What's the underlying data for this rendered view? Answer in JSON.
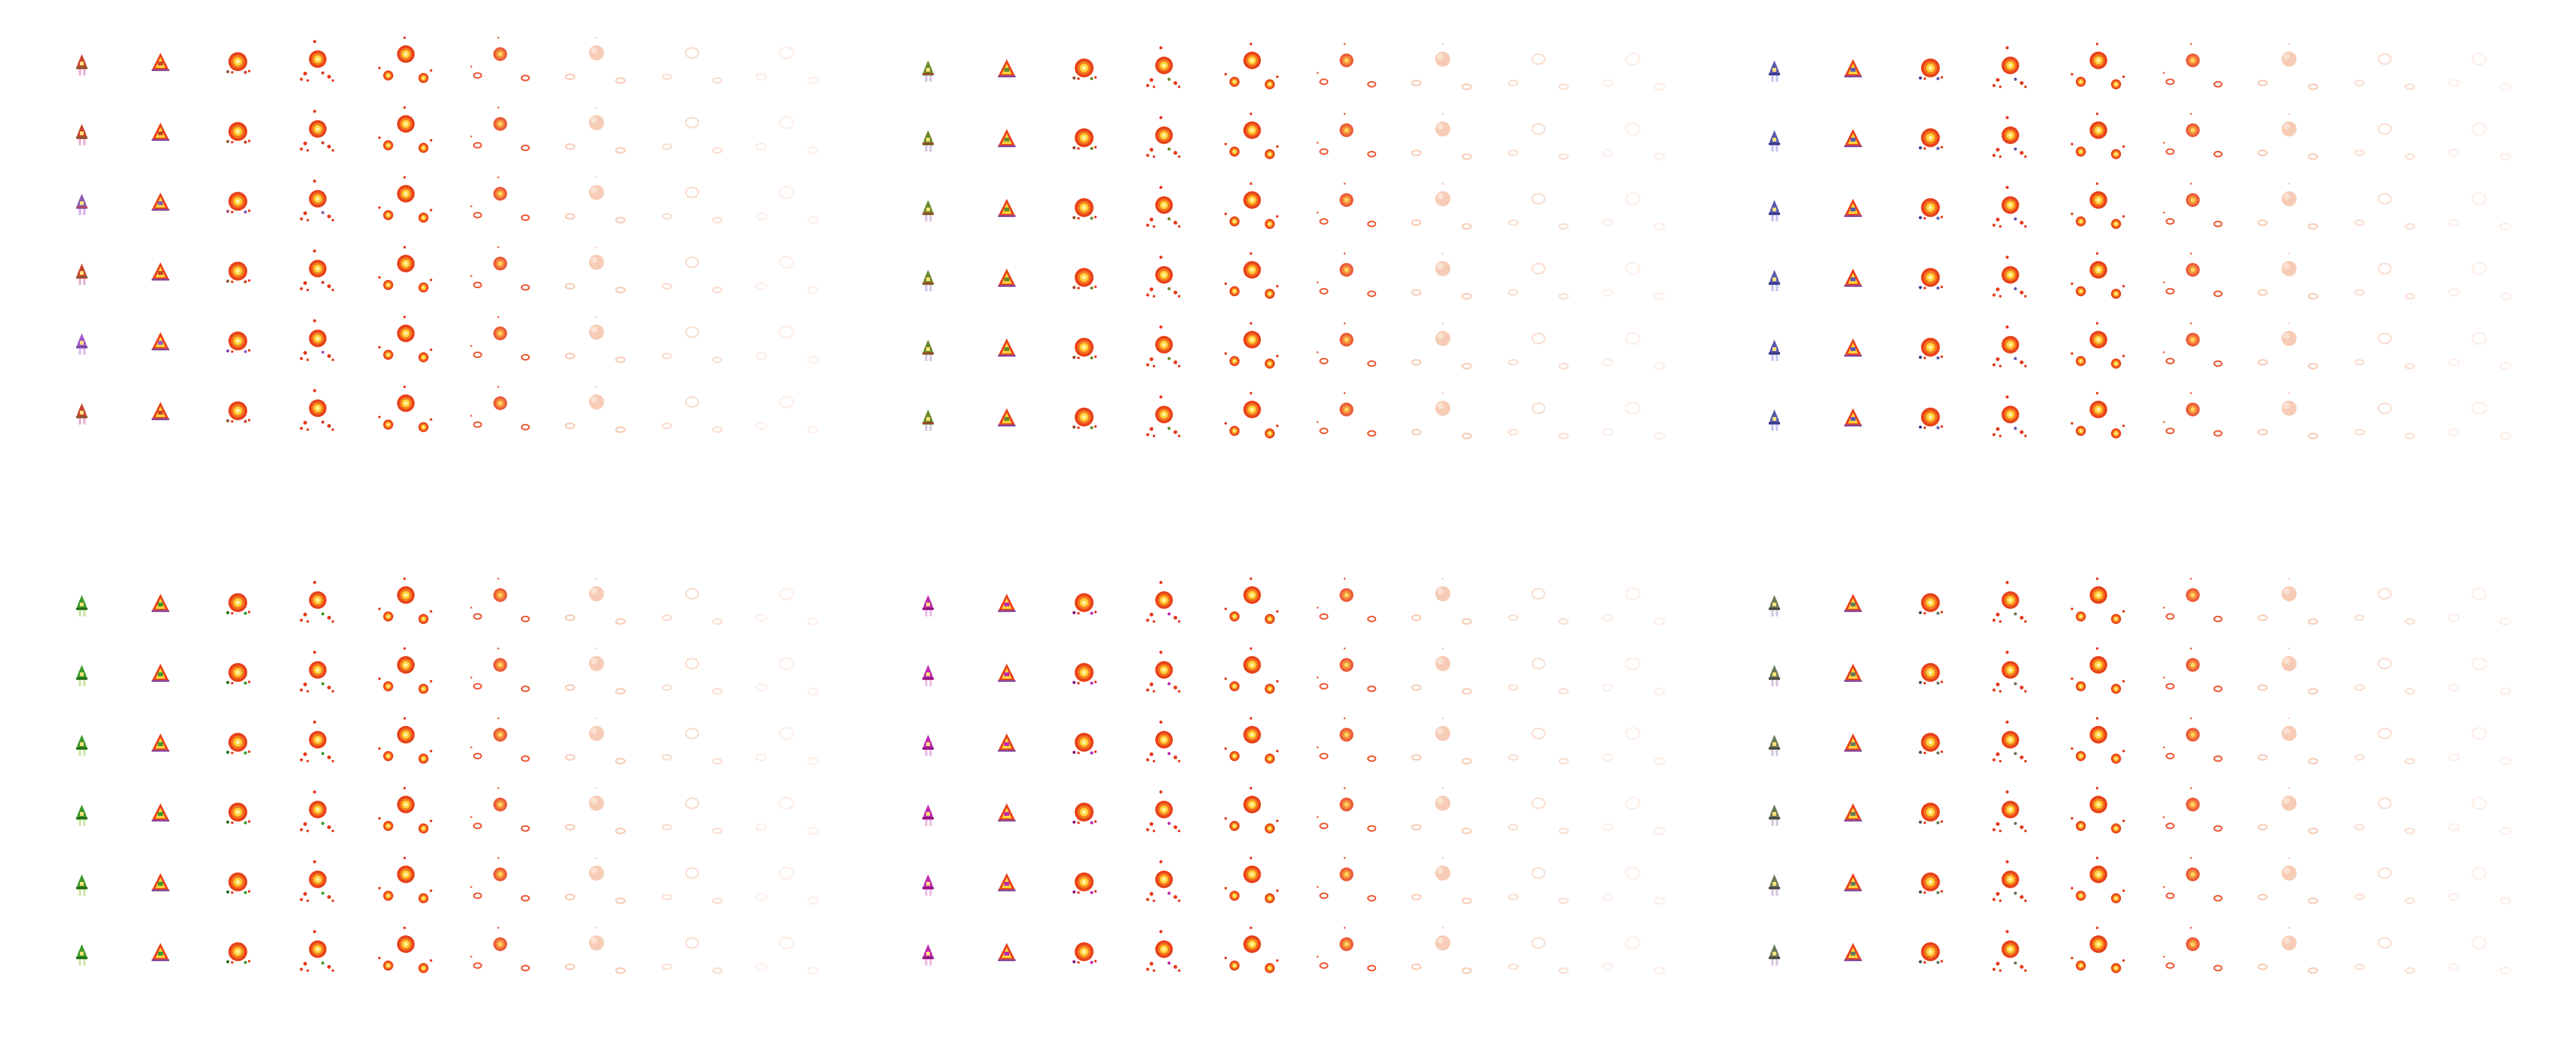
{
  "sheet": {
    "background": "#ffffff",
    "frames_per_row": 9,
    "rows_per_block": 6,
    "frame_sequence": [
      {
        "stage": "ship",
        "opacity": 1.0
      },
      {
        "stage": "ignite",
        "opacity": 1.0
      },
      {
        "stage": "fireball",
        "opacity": 1.0
      },
      {
        "stage": "burst",
        "opacity": 1.0
      },
      {
        "stage": "split",
        "opacity": 1.0
      },
      {
        "stage": "split-fade",
        "opacity": 0.85
      },
      {
        "stage": "smoke",
        "opacity": 0.5
      },
      {
        "stage": "smoke-fade",
        "opacity": 0.32
      },
      {
        "stage": "smoke-trace",
        "opacity": 0.16
      }
    ],
    "fire_colors": {
      "outer": "#e8421a",
      "mid": "#f47a1e",
      "core": "#ffd23a",
      "hot": "#fff3b0",
      "debris": "#e63a1c",
      "smoke": "#f09a70"
    },
    "blocks": [
      {
        "id": "block-1",
        "ship_variants": [
          {
            "name": "ship-red",
            "hull": "#c8442c",
            "trim": "#8a5a3a",
            "flame": "#e7b7d9"
          },
          {
            "name": "ship-red",
            "hull": "#c8442c",
            "trim": "#8a5a3a",
            "flame": "#e7b7d9"
          },
          {
            "name": "ship-purple",
            "hull": "#8a5ab0",
            "trim": "#b04a6a",
            "flame": "#d7b7e7"
          },
          {
            "name": "ship-red",
            "hull": "#c8442c",
            "trim": "#8a5a3a",
            "flame": "#e7b7d9"
          },
          {
            "name": "ship-violet",
            "hull": "#a05ad0",
            "trim": "#7a4aa0",
            "flame": "#e0c0f0"
          },
          {
            "name": "ship-red",
            "hull": "#c8442c",
            "trim": "#8a5a3a",
            "flame": "#e7b7d9"
          }
        ]
      },
      {
        "id": "block-2",
        "ship_variants": [
          {
            "name": "ship-olive",
            "hull": "#6a8a2a",
            "trim": "#9a4a2a",
            "flame": "#d9c9e7"
          },
          {
            "name": "ship-olive",
            "hull": "#6a8a2a",
            "trim": "#9a4a2a",
            "flame": "#d9c9e7"
          },
          {
            "name": "ship-olive",
            "hull": "#6a8a2a",
            "trim": "#9a4a2a",
            "flame": "#d9c9e7"
          },
          {
            "name": "ship-olive",
            "hull": "#6a8a2a",
            "trim": "#9a4a2a",
            "flame": "#d9c9e7"
          },
          {
            "name": "ship-olive",
            "hull": "#6a8a2a",
            "trim": "#9a4a2a",
            "flame": "#d9c9e7"
          },
          {
            "name": "ship-olive",
            "hull": "#6a8a2a",
            "trim": "#9a4a2a",
            "flame": "#d9c9e7"
          }
        ]
      },
      {
        "id": "block-3",
        "ship_variants": [
          {
            "name": "ship-blue",
            "hull": "#5a5ab0",
            "trim": "#3a3a8a",
            "flame": "#c9c9f0"
          },
          {
            "name": "ship-blue",
            "hull": "#5a5ab0",
            "trim": "#3a3a8a",
            "flame": "#c9c9f0"
          },
          {
            "name": "ship-blue",
            "hull": "#5a5ab0",
            "trim": "#3a3a8a",
            "flame": "#c9c9f0"
          },
          {
            "name": "ship-blue",
            "hull": "#5a5ab0",
            "trim": "#3a3a8a",
            "flame": "#c9c9f0"
          },
          {
            "name": "ship-blue",
            "hull": "#5a5ab0",
            "trim": "#3a3a8a",
            "flame": "#c9c9f0"
          },
          {
            "name": "ship-blue",
            "hull": "#5a5ab0",
            "trim": "#3a3a8a",
            "flame": "#c9c9f0"
          }
        ]
      },
      {
        "id": "block-4",
        "ship_variants": [
          {
            "name": "ship-green",
            "hull": "#3a9a2a",
            "trim": "#2a6a1a",
            "flame": "#d0e7b0"
          },
          {
            "name": "ship-green",
            "hull": "#3a9a2a",
            "trim": "#2a6a1a",
            "flame": "#d0e7b0"
          },
          {
            "name": "ship-green",
            "hull": "#3a9a2a",
            "trim": "#2a6a1a",
            "flame": "#d0e7b0"
          },
          {
            "name": "ship-green",
            "hull": "#3a9a2a",
            "trim": "#2a6a1a",
            "flame": "#d0e7b0"
          },
          {
            "name": "ship-green",
            "hull": "#3a9a2a",
            "trim": "#2a6a1a",
            "flame": "#d0e7b0"
          },
          {
            "name": "ship-green",
            "hull": "#3a9a2a",
            "trim": "#2a6a1a",
            "flame": "#d0e7b0"
          }
        ]
      },
      {
        "id": "block-5",
        "ship_variants": [
          {
            "name": "ship-magenta",
            "hull": "#c02ab0",
            "trim": "#8a1a7a",
            "flame": "#f0c0e7"
          },
          {
            "name": "ship-magenta",
            "hull": "#c02ab0",
            "trim": "#8a1a7a",
            "flame": "#f0c0e7"
          },
          {
            "name": "ship-magenta",
            "hull": "#c02ab0",
            "trim": "#8a1a7a",
            "flame": "#f0c0e7"
          },
          {
            "name": "ship-magenta",
            "hull": "#c02ab0",
            "trim": "#8a1a7a",
            "flame": "#f0c0e7"
          },
          {
            "name": "ship-magenta",
            "hull": "#c02ab0",
            "trim": "#8a1a7a",
            "flame": "#f0c0e7"
          },
          {
            "name": "ship-magenta",
            "hull": "#c02ab0",
            "trim": "#8a1a7a",
            "flame": "#f0c0e7"
          }
        ]
      },
      {
        "id": "block-6",
        "ship_variants": [
          {
            "name": "ship-gray",
            "hull": "#6a7a5a",
            "trim": "#4a4a4a",
            "flame": "#d9c9e0"
          },
          {
            "name": "ship-gray",
            "hull": "#6a7a5a",
            "trim": "#4a4a4a",
            "flame": "#d9c9e0"
          },
          {
            "name": "ship-gray",
            "hull": "#6a7a5a",
            "trim": "#4a4a4a",
            "flame": "#d9c9e0"
          },
          {
            "name": "ship-gray",
            "hull": "#6a7a5a",
            "trim": "#4a4a4a",
            "flame": "#d9c9e0"
          },
          {
            "name": "ship-gray",
            "hull": "#6a7a5a",
            "trim": "#4a4a4a",
            "flame": "#d9c9e0"
          },
          {
            "name": "ship-gray",
            "hull": "#6a7a5a",
            "trim": "#4a4a4a",
            "flame": "#d9c9e0"
          }
        ]
      }
    ]
  }
}
